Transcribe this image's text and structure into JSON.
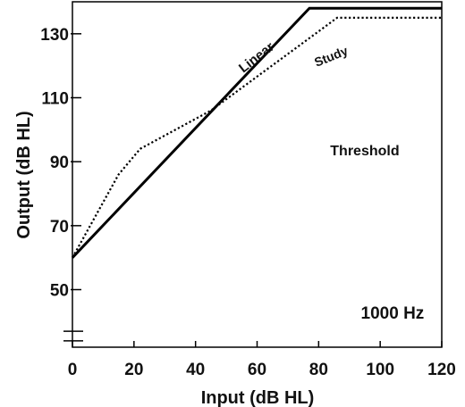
{
  "chart_data": {
    "type": "line",
    "title": "",
    "xlabel": "Input (dB HL)",
    "ylabel": "Output (dB HL)",
    "xlim": [
      0,
      120
    ],
    "ylim": [
      32,
      140
    ],
    "x_ticks": [
      0,
      20,
      40,
      60,
      80,
      100,
      120
    ],
    "y_ticks": [
      50,
      70,
      90,
      110,
      130
    ],
    "grid": false,
    "legend": "none",
    "series": [
      {
        "name": "Linear",
        "style": "solid",
        "color": "#000000",
        "x": [
          0,
          77,
          120
        ],
        "y": [
          60,
          138,
          138
        ]
      },
      {
        "name": "Study",
        "style": "dotted",
        "color": "#000000",
        "x": [
          0,
          15,
          22,
          45,
          86,
          120
        ],
        "y": [
          60,
          86,
          94,
          106,
          135,
          135
        ]
      }
    ],
    "annotations": [
      {
        "text": "Threshold",
        "x": 95,
        "y": 92
      },
      {
        "text": "1000 Hz",
        "x": 104,
        "y": 41
      }
    ],
    "axis_break_y": [
      34,
      37
    ]
  }
}
